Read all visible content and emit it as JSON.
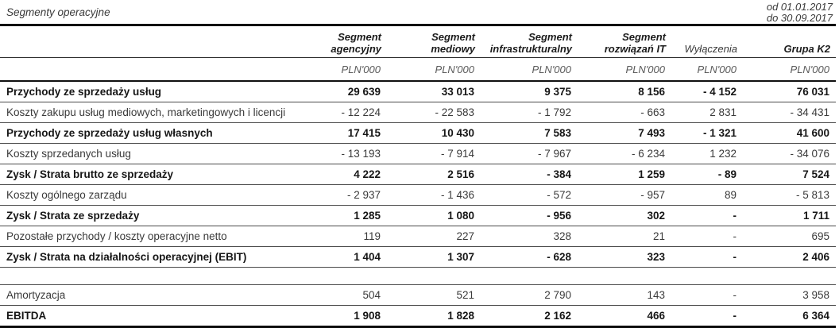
{
  "title": "Segmenty operacyjne",
  "period": {
    "line1": "od 01.01.2017",
    "line2": "do 30.09.2017"
  },
  "table": {
    "columns": [
      {
        "label": "Segment agencyjny"
      },
      {
        "label": "Segment mediowy"
      },
      {
        "label": "Segment infrastrukturalny"
      },
      {
        "label": "Segment rozwiązań IT"
      },
      {
        "label": "Wyłączenia"
      },
      {
        "label": "Grupa K2"
      }
    ],
    "unit": "PLN'000",
    "unit_row": [
      "PLN'000",
      "PLN'000",
      "PLN'000",
      "PLN'000",
      "PLN'000",
      "PLN'000"
    ],
    "rows": [
      {
        "label": "Przychody ze sprzedaży usług",
        "bold": true,
        "values": [
          "29 639",
          "33 013",
          "9 375",
          "8 156",
          "- 4 152",
          "76 031"
        ]
      },
      {
        "label": "Koszty zakupu usług mediowych, marketingowych i licencji",
        "bold": false,
        "values": [
          "- 12 224",
          "- 22 583",
          "- 1 792",
          "- 663",
          "2 831",
          "- 34 431"
        ]
      },
      {
        "label": "Przychody ze sprzedaży usług własnych",
        "bold": true,
        "values": [
          "17 415",
          "10 430",
          "7 583",
          "7 493",
          "- 1 321",
          "41 600"
        ]
      },
      {
        "label": "Koszty sprzedanych usług",
        "bold": false,
        "values": [
          "- 13 193",
          "- 7 914",
          "- 7 967",
          "- 6 234",
          "1 232",
          "- 34 076"
        ]
      },
      {
        "label": "Zysk / Strata brutto ze sprzedaży",
        "bold": true,
        "values": [
          "4 222",
          "2 516",
          "- 384",
          "1 259",
          "- 89",
          "7 524"
        ]
      },
      {
        "label": "Koszty ogólnego zarządu",
        "bold": false,
        "values": [
          "- 2 937",
          "- 1 436",
          "- 572",
          "- 957",
          "89",
          "- 5 813"
        ]
      },
      {
        "label": "Zysk / Strata ze sprzedaży",
        "bold": true,
        "values": [
          "1 285",
          "1 080",
          "- 956",
          "302",
          "-",
          "1 711"
        ]
      },
      {
        "label": "Pozostałe przychody / koszty operacyjne netto",
        "bold": false,
        "values": [
          "119",
          "227",
          "328",
          "21",
          "-",
          "695"
        ]
      },
      {
        "label": "Zysk / Strata na działalności operacyjnej (EBIT)",
        "bold": true,
        "values": [
          "1 404",
          "1 307",
          "- 628",
          "323",
          "-",
          "2 406"
        ]
      },
      {
        "spacer": true
      },
      {
        "label": "Amortyzacja",
        "bold": false,
        "values": [
          "504",
          "521",
          "2 790",
          "143",
          "-",
          "3 958"
        ]
      },
      {
        "label": "EBITDA",
        "bold": true,
        "values": [
          "1 908",
          "1 828",
          "2 162",
          "466",
          "-",
          "6 364"
        ]
      }
    ]
  }
}
